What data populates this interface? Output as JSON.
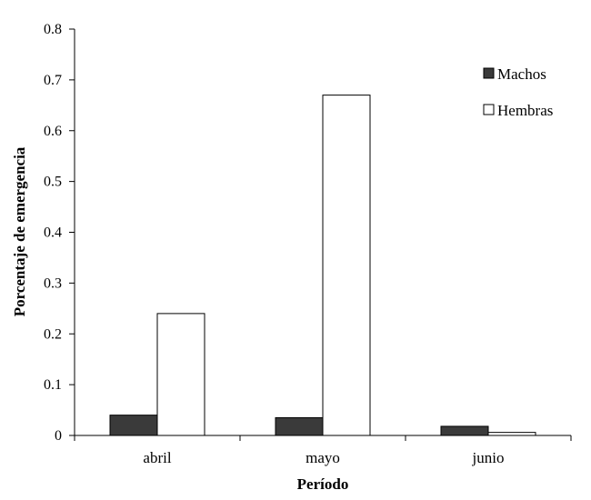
{
  "chart_data": {
    "type": "bar",
    "title": "",
    "xlabel": "Período",
    "ylabel": "Porcentaje de emergencia",
    "categories": [
      "abril",
      "mayo",
      "junio"
    ],
    "series": [
      {
        "name": "Machos",
        "color": "#3a3a3a",
        "values": [
          0.04,
          0.035,
          0.018
        ]
      },
      {
        "name": "Hembras",
        "color": "#ffffff",
        "values": [
          0.24,
          0.67,
          0.006
        ]
      }
    ],
    "ylim": [
      0,
      0.8
    ],
    "yticks": [
      "0",
      "0.1",
      "0.2",
      "0.3",
      "0.4",
      "0.5",
      "0.6",
      "0.7",
      "0.8"
    ],
    "grid": false,
    "legend_position": "top-right"
  }
}
